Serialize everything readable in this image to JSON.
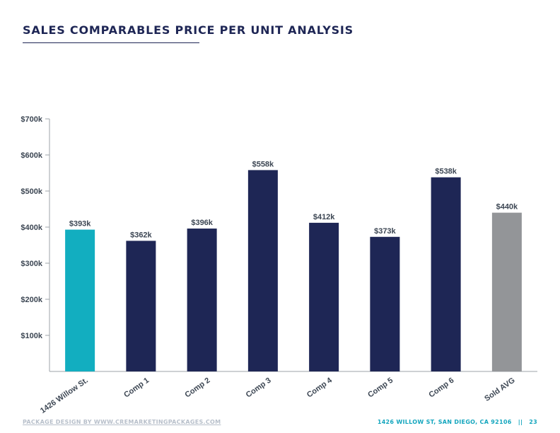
{
  "header": {
    "title": "SALES COMPARABLES PRICE PER UNIT ANALYSIS"
  },
  "chart_data": {
    "type": "bar",
    "categories": [
      "1426 Willow St.",
      "Comp 1",
      "Comp 2",
      "Comp 3",
      "Comp 4",
      "Comp 5",
      "Comp 6",
      "Sold AVG"
    ],
    "values": [
      393,
      362,
      396,
      558,
      412,
      373,
      538,
      440
    ],
    "data_labels": [
      "$393k",
      "$362k",
      "$396k",
      "$558k",
      "$412k",
      "$373k",
      "$538k",
      "$440k"
    ],
    "ylim": [
      0,
      700
    ],
    "y_ticks": [
      100,
      200,
      300,
      400,
      500,
      600,
      700
    ],
    "y_tick_labels": [
      "$100k",
      "$200k",
      "$300k",
      "$400k",
      "$500k",
      "$600k",
      "$700k"
    ],
    "grid": false,
    "colors": [
      "#12aec0",
      "#1e2655",
      "#1e2655",
      "#1e2655",
      "#1e2655",
      "#1e2655",
      "#1e2655",
      "#939598"
    ],
    "axis_color": "#9ea3a8"
  },
  "footer": {
    "credit": "PACKAGE DESIGN BY WWW.CREMARKETINGPACKAGES.COM",
    "address": "1426 WILLOW ST, SAN DIEGO, CA 92106",
    "separator": "||",
    "page_number": "23"
  }
}
